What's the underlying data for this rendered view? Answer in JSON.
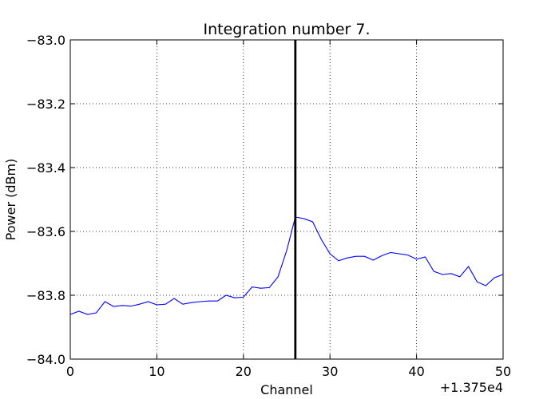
{
  "chart_data": {
    "type": "line",
    "title": "Integration number 7.",
    "xlabel": "Channel",
    "ylabel": "Power (dBm)",
    "x_offset_label": "+1.375e4",
    "xlim": [
      0,
      50
    ],
    "ylim": [
      -84.0,
      -83.0
    ],
    "x_ticks": [
      0,
      10,
      20,
      30,
      40,
      50
    ],
    "x_tick_labels": [
      "0",
      "10",
      "20",
      "30",
      "40",
      "50"
    ],
    "y_ticks": [
      -84.0,
      -83.8,
      -83.6,
      -83.4,
      -83.2,
      -83.0
    ],
    "y_tick_labels": [
      "−84.0",
      "−83.8",
      "−83.6",
      "−83.4",
      "−83.2",
      "−83.0"
    ],
    "grid": true,
    "vertical_marker": {
      "x": 26,
      "color": "#000000"
    },
    "series": [
      {
        "color": "#0000ff",
        "x": [
          0,
          1,
          2,
          3,
          4,
          5,
          6,
          7,
          8,
          9,
          10,
          11,
          12,
          13,
          14,
          15,
          16,
          17,
          18,
          19,
          20,
          21,
          22,
          23,
          24,
          25,
          26,
          27,
          28,
          29,
          30,
          31,
          32,
          33,
          34,
          35,
          36,
          37,
          38,
          39,
          40,
          41,
          42,
          43,
          44,
          45,
          46,
          47,
          48,
          49,
          50
        ],
        "y": [
          -83.86,
          -83.85,
          -83.86,
          -83.855,
          -83.82,
          -83.835,
          -83.832,
          -83.834,
          -83.828,
          -83.82,
          -83.83,
          -83.828,
          -83.81,
          -83.828,
          -83.823,
          -83.82,
          -83.818,
          -83.818,
          -83.8,
          -83.808,
          -83.806,
          -83.774,
          -83.778,
          -83.776,
          -83.742,
          -83.66,
          -83.555,
          -83.56,
          -83.57,
          -83.625,
          -83.67,
          -83.692,
          -83.683,
          -83.678,
          -83.678,
          -83.69,
          -83.676,
          -83.666,
          -83.67,
          -83.674,
          -83.687,
          -83.68,
          -83.725,
          -83.735,
          -83.732,
          -83.742,
          -83.71,
          -83.758,
          -83.77,
          -83.745,
          -83.735
        ]
      }
    ]
  }
}
